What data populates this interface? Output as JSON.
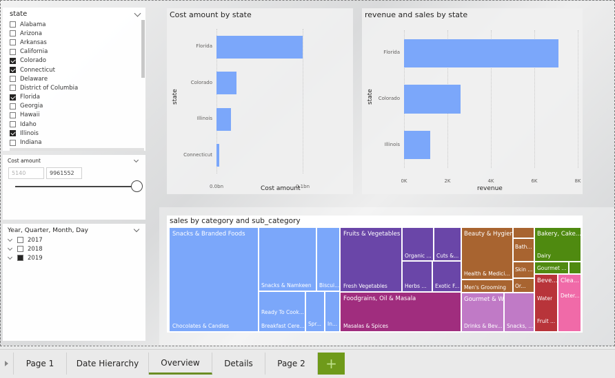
{
  "state_slicer": {
    "title": "state",
    "items": [
      {
        "label": "Alabama",
        "checked": false
      },
      {
        "label": "Arizona",
        "checked": false
      },
      {
        "label": "Arkansas",
        "checked": false
      },
      {
        "label": "California",
        "checked": false
      },
      {
        "label": "Colorado",
        "checked": true
      },
      {
        "label": "Connecticut",
        "checked": true
      },
      {
        "label": "Delaware",
        "checked": false
      },
      {
        "label": "District of Columbia",
        "checked": false
      },
      {
        "label": "Florida",
        "checked": true
      },
      {
        "label": "Georgia",
        "checked": false
      },
      {
        "label": "Hawaii",
        "checked": false
      },
      {
        "label": "Idaho",
        "checked": false
      },
      {
        "label": "Illinois",
        "checked": true
      },
      {
        "label": "Indiana",
        "checked": false
      }
    ]
  },
  "cost_slicer": {
    "title": "Cost amount",
    "min_value": "5140",
    "max_value": "9961552"
  },
  "date_slicer": {
    "title": "Year, Quarter, Month, Day",
    "items": [
      {
        "label": "2017",
        "checked": false
      },
      {
        "label": "2018",
        "checked": false
      },
      {
        "label": "2019",
        "checked": true
      }
    ]
  },
  "colors": {
    "bar": "#7ba7fa",
    "snacks": "#7ba7fa",
    "fruits": "#6a46a8",
    "foodgrains": "#a02d7e",
    "beauty": "#a86430",
    "gourmet": "#c07ac6",
    "bakery": "#4f8a10",
    "beverages": "#b8343a",
    "cleaning": "#f06aa8",
    "accent_green": "#6f9a1a"
  },
  "chart_data": [
    {
      "type": "bar",
      "orientation": "horizontal",
      "title": "Cost amount by state",
      "xlabel": "Cost amount",
      "ylabel": "state",
      "categories": [
        "Florida",
        "Colorado",
        "Illinois",
        "Connecticut"
      ],
      "values": [
        0.1,
        0.023,
        0.017,
        0.003
      ],
      "xlim": [
        0,
        0.12
      ],
      "xticks": [
        {
          "value": 0,
          "label": "0.0bn"
        },
        {
          "value": 0.1,
          "label": "0.1bn"
        }
      ]
    },
    {
      "type": "bar",
      "orientation": "horizontal",
      "title": "revenue and sales by state",
      "xlabel": "revenue",
      "ylabel": "state",
      "categories": [
        "Florida",
        "Colorado",
        "Illinois"
      ],
      "values": [
        7100,
        2600,
        1200
      ],
      "xlim": [
        0,
        8000
      ],
      "xticks": [
        {
          "value": 0,
          "label": "0K"
        },
        {
          "value": 2000,
          "label": "2K"
        },
        {
          "value": 4000,
          "label": "4K"
        },
        {
          "value": 6000,
          "label": "6K"
        },
        {
          "value": 8000,
          "label": "8K"
        }
      ]
    },
    {
      "type": "treemap",
      "title": "sales by category and sub_category",
      "groups": [
        {
          "name": "Snacks & Branded Foods",
          "color": "snacks",
          "children": [
            "Chocolates & Candies",
            "Snacks & Namkeen",
            "Biscui...",
            "Ready To Cook...",
            "Breakfast Cere...",
            "Spr...",
            "In..."
          ]
        },
        {
          "name": "Fruits & Vegetables",
          "color": "fruits",
          "children": [
            "Fresh Vegetables",
            "Organic ...",
            "Cuts &...",
            "Herbs ...",
            "Exotic F..."
          ]
        },
        {
          "name": "Foodgrains, Oil & Masala",
          "color": "foodgrains",
          "children": [
            "Masalas & Spices"
          ]
        },
        {
          "name": "Beauty & Hygiene",
          "color": "beauty",
          "children": [
            "Health & Medici...",
            "Men's Grooming",
            "Bath...",
            "Skin ...",
            "Or..."
          ]
        },
        {
          "name": "Gourmet & World Food",
          "color": "gourmet",
          "children": [
            "Drinks & Bev...",
            "Snacks, ..."
          ]
        },
        {
          "name": "Bakery, Cake...",
          "color": "bakery",
          "children": [
            "Dairy",
            "Gourmet ..."
          ]
        },
        {
          "name": "Beve...",
          "color": "beverages",
          "children": [
            "Water",
            "Fruit ..."
          ]
        },
        {
          "name": "Clea...",
          "color": "cleaning",
          "children": [
            "Deter..."
          ]
        }
      ]
    }
  ],
  "tabs": [
    {
      "label": "Page 1",
      "active": false
    },
    {
      "label": "Date Hierarchy",
      "active": false
    },
    {
      "label": "Overview",
      "active": true
    },
    {
      "label": "Details",
      "active": false
    },
    {
      "label": "Page 2",
      "active": false
    }
  ],
  "add_tab_label": "+"
}
